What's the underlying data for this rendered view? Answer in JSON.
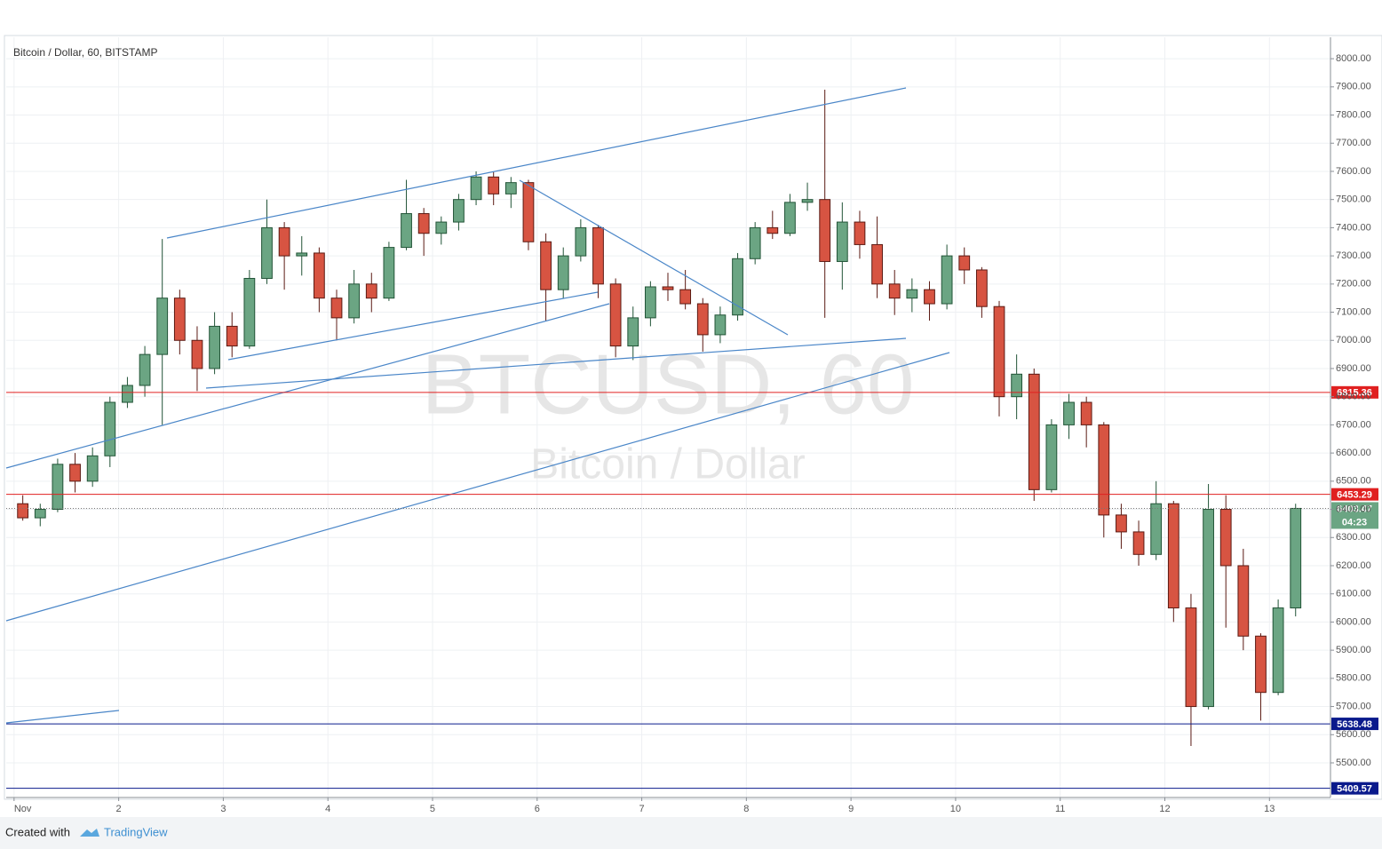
{
  "chart_data": {
    "type": "candlestick",
    "title": "Bitcoin / Dollar, 60, BITSTAMP",
    "watermark": {
      "symbol": "BTCUSD, 60",
      "name": "Bitcoin / Dollar"
    },
    "x": [
      2,
      6,
      10,
      14,
      18,
      22,
      26,
      30,
      34,
      38,
      42,
      46,
      50,
      54,
      58,
      62,
      66,
      70,
      74,
      78,
      82,
      86,
      90,
      94,
      98,
      102,
      106,
      110,
      114,
      118,
      122,
      126,
      130,
      134,
      138,
      142,
      146,
      150,
      154,
      158,
      162,
      166,
      170,
      174,
      178,
      182,
      186,
      190,
      194,
      198,
      202,
      206,
      210,
      214,
      218,
      222,
      226,
      230,
      234,
      238,
      242,
      246,
      250,
      254,
      258,
      262,
      266,
      270,
      274,
      278,
      282,
      286,
      290,
      294
    ],
    "open": [
      6420,
      6370,
      6400,
      6560,
      6500,
      6590,
      6780,
      6840,
      6950,
      7150,
      7000,
      6900,
      7050,
      6980,
      7220,
      7400,
      7300,
      7310,
      7150,
      7080,
      7200,
      7150,
      7330,
      7450,
      7380,
      7420,
      7500,
      7580,
      7520,
      7560,
      7350,
      7180,
      7300,
      7400,
      7200,
      6980,
      7080,
      7190,
      7180,
      7130,
      7020,
      7090,
      7290,
      7400,
      7380,
      7490,
      7500,
      7280,
      7420,
      7340,
      7200,
      7150,
      7180,
      7130,
      7300,
      7250,
      7120,
      6800,
      6880,
      6470,
      6700,
      6780,
      6700,
      6380,
      6320,
      6240,
      6420,
      6050,
      5700,
      6400,
      6200,
      5950,
      5750,
      6050
    ],
    "high": [
      6450,
      6420,
      6580,
      6600,
      6620,
      6800,
      6870,
      6980,
      7360,
      7180,
      7050,
      7100,
      7100,
      7250,
      7500,
      7420,
      7370,
      7330,
      7180,
      7250,
      7240,
      7350,
      7570,
      7470,
      7440,
      7520,
      7600,
      7600,
      7580,
      7570,
      7380,
      7330,
      7430,
      7410,
      7220,
      7120,
      7210,
      7240,
      7250,
      7150,
      7120,
      7310,
      7420,
      7460,
      7520,
      7560,
      7890,
      7490,
      7460,
      7440,
      7250,
      7220,
      7210,
      7340,
      7330,
      7260,
      7140,
      6950,
      6900,
      6720,
      6810,
      6800,
      6710,
      6420,
      6360,
      6500,
      6430,
      6100,
      6490,
      6450,
      6260,
      5960,
      6080,
      6420
    ],
    "low": [
      6360,
      6340,
      6390,
      6460,
      6480,
      6550,
      6760,
      6800,
      6700,
      6950,
      6820,
      6880,
      6940,
      6970,
      7200,
      7180,
      7230,
      7100,
      7000,
      7060,
      7100,
      7140,
      7320,
      7300,
      7340,
      7390,
      7480,
      7480,
      7470,
      7320,
      7070,
      7150,
      7280,
      7150,
      6940,
      6930,
      7050,
      7140,
      7110,
      6960,
      6990,
      7070,
      7270,
      7360,
      7370,
      7460,
      7080,
      7180,
      7290,
      7150,
      7090,
      7100,
      7070,
      7110,
      7200,
      7080,
      6730,
      6720,
      6430,
      6460,
      6650,
      6620,
      6300,
      6260,
      6200,
      6220,
      6000,
      5560,
      5690,
      5980,
      5900,
      5650,
      5740,
      6020
    ],
    "close": [
      6370,
      6400,
      6560,
      6500,
      6590,
      6780,
      6840,
      6950,
      7150,
      7000,
      6900,
      7050,
      6980,
      7220,
      7400,
      7300,
      7310,
      7150,
      7080,
      7200,
      7150,
      7330,
      7450,
      7380,
      7420,
      7500,
      7580,
      7520,
      7560,
      7350,
      7180,
      7300,
      7400,
      7200,
      6980,
      7080,
      7190,
      7180,
      7130,
      7020,
      7090,
      7290,
      7400,
      7380,
      7490,
      7500,
      7280,
      7420,
      7340,
      7200,
      7150,
      7180,
      7130,
      7300,
      7250,
      7120,
      6800,
      6880,
      6470,
      6700,
      6780,
      6700,
      6380,
      6320,
      6240,
      6420,
      6050,
      5700,
      6400,
      6200,
      5950,
      5750,
      6050,
      6403.47
    ],
    "up_color": "#6ba583",
    "down_color": "#d75442",
    "up_border": "#225437",
    "down_border": "#5b1a13",
    "xlim": [
      -1.8,
      302
    ],
    "xticks": [
      {
        "value": 0,
        "label": "Nov"
      },
      {
        "value": 24,
        "label": "2"
      },
      {
        "value": 48,
        "label": "3"
      },
      {
        "value": 72,
        "label": "4"
      },
      {
        "value": 96,
        "label": "5"
      },
      {
        "value": 120,
        "label": "6"
      },
      {
        "value": 144,
        "label": "7"
      },
      {
        "value": 168,
        "label": "8"
      },
      {
        "value": 192,
        "label": "9"
      },
      {
        "value": 216,
        "label": "10"
      },
      {
        "value": 240,
        "label": "11"
      },
      {
        "value": 264,
        "label": "12"
      },
      {
        "value": 288,
        "label": "13"
      }
    ],
    "ylim": [
      5377,
      8076
    ],
    "yticks": [
      {
        "value": 5500,
        "label": "5500.00"
      },
      {
        "value": 5600,
        "label": "5600.00"
      },
      {
        "value": 5700,
        "label": "5700.00"
      },
      {
        "value": 5800,
        "label": "5800.00"
      },
      {
        "value": 5900,
        "label": "5900.00"
      },
      {
        "value": 6000,
        "label": "6000.00"
      },
      {
        "value": 6100,
        "label": "6100.00"
      },
      {
        "value": 6200,
        "label": "6200.00"
      },
      {
        "value": 6300,
        "label": "6300.00"
      },
      {
        "value": 6400,
        "label": "6400.00"
      },
      {
        "value": 6500,
        "label": "6500.00"
      },
      {
        "value": 6600,
        "label": "6600.00"
      },
      {
        "value": 6700,
        "label": "6700.00"
      },
      {
        "value": 6800,
        "label": "6800.00"
      },
      {
        "value": 6900,
        "label": "6900.00"
      },
      {
        "value": 7000,
        "label": "7000.00"
      },
      {
        "value": 7100,
        "label": "7100.00"
      },
      {
        "value": 7200,
        "label": "7200.00"
      },
      {
        "value": 7300,
        "label": "7300.00"
      },
      {
        "value": 7400,
        "label": "7400.00"
      },
      {
        "value": 7500,
        "label": "7500.00"
      },
      {
        "value": 7600,
        "label": "7600.00"
      },
      {
        "value": 7700,
        "label": "7700.00"
      },
      {
        "value": 7800,
        "label": "7800.00"
      },
      {
        "value": 7900,
        "label": "7900.00"
      },
      {
        "value": 8000,
        "label": "8000.00"
      }
    ],
    "grid": true,
    "levels": [
      {
        "value": 6815.36,
        "color": "#e02020"
      },
      {
        "value": 6453.29,
        "color": "#e02020"
      },
      {
        "value": 5638.48,
        "color": "#0a1a8c"
      },
      {
        "value": 5409.57,
        "color": "#0a1a8c"
      }
    ],
    "last_price": {
      "value": 6403.47,
      "color": "#6ba583",
      "countdown": "04:23"
    }
  },
  "footer": {
    "created": "Created with",
    "brand": "TradingView"
  }
}
